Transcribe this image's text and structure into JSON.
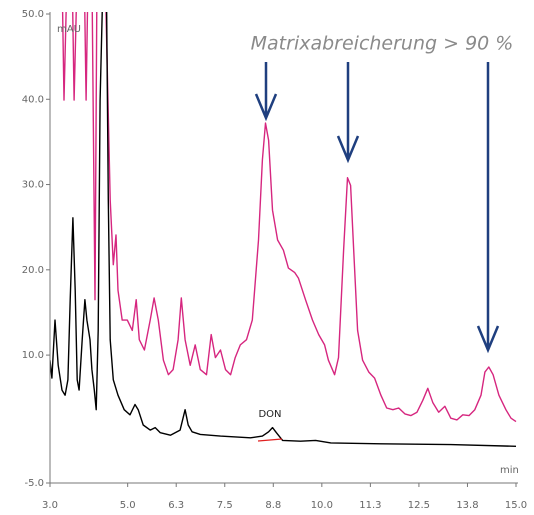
{
  "chart_data": {
    "type": "line",
    "title": "Matrixabreicherung > 90 %",
    "y_label": "mAU",
    "x_label": "min",
    "annotation": "DON",
    "xlim": [
      3,
      15
    ],
    "ylim": [
      -5,
      50
    ],
    "xticks": [
      {
        "value": 3,
        "label": "3.0"
      },
      {
        "value": 5,
        "label": "5.0"
      },
      {
        "value": 6.25,
        "label": "6.3"
      },
      {
        "value": 7.5,
        "label": "7.5"
      },
      {
        "value": 8.75,
        "label": "8.8"
      },
      {
        "value": 10,
        "label": "10.0"
      },
      {
        "value": 11.25,
        "label": "11.3"
      },
      {
        "value": 12.5,
        "label": "12.5"
      },
      {
        "value": 13.75,
        "label": "13.8"
      },
      {
        "value": 15,
        "label": "15.0"
      }
    ],
    "yticks": [
      {
        "value": 50,
        "label": "50.0"
      },
      {
        "value": 40,
        "label": "40.0"
      },
      {
        "value": 30,
        "label": "30.0"
      },
      {
        "value": 20,
        "label": "20.0"
      },
      {
        "value": 10,
        "label": "10.0"
      },
      {
        "value": -5,
        "label": "-5.0"
      }
    ],
    "series": [
      {
        "color": "#d6267f",
        "x": [
          3.31,
          3.36,
          3.44,
          3.57,
          3.62,
          3.7,
          3.88,
          3.93,
          3.98,
          4.08,
          4.16,
          4.21,
          4.42,
          4.55,
          4.63,
          4.7,
          4.75,
          4.86,
          4.99,
          5.12,
          5.22,
          5.3,
          5.43,
          5.58,
          5.68,
          5.79,
          5.92,
          6.05,
          6.17,
          6.3,
          6.38,
          6.48,
          6.61,
          6.74,
          6.87,
          7.03,
          7.15,
          7.26,
          7.39,
          7.52,
          7.65,
          7.77,
          7.9,
          8.06,
          8.21,
          8.37,
          8.47,
          8.55,
          8.63,
          8.73,
          8.86,
          9.01,
          9.14,
          9.3,
          9.4,
          9.58,
          9.76,
          9.92,
          10.07,
          10.17,
          10.33,
          10.43,
          10.56,
          10.66,
          10.74,
          10.82,
          10.92,
          11.05,
          11.21,
          11.36,
          11.52,
          11.67,
          11.83,
          11.98,
          12.14,
          12.29,
          12.45,
          12.6,
          12.73,
          12.86,
          13.01,
          13.17,
          13.32,
          13.48,
          13.63,
          13.79,
          13.94,
          14.1,
          14.2,
          14.3,
          14.41,
          14.56,
          14.74,
          14.87,
          15.0
        ],
        "values": [
          55,
          39.9,
          55,
          55,
          39.9,
          55,
          55,
          39.9,
          55,
          55,
          16.5,
          55,
          55,
          28.2,
          20.6,
          24.1,
          17.6,
          14.1,
          14.1,
          12.9,
          16.5,
          11.8,
          10.6,
          14.1,
          16.7,
          14.1,
          9.4,
          7.7,
          8.3,
          11.8,
          16.7,
          11.8,
          8.8,
          11.2,
          8.3,
          7.7,
          12.4,
          9.7,
          10.6,
          8.3,
          7.7,
          9.7,
          11.2,
          11.8,
          14.1,
          23.5,
          32.9,
          37.2,
          35.2,
          27.0,
          23.5,
          22.3,
          20.2,
          19.7,
          19.0,
          16.5,
          14.1,
          12.4,
          11.2,
          9.4,
          7.7,
          9.7,
          22.3,
          30.8,
          29.9,
          22.3,
          12.9,
          9.4,
          8.0,
          7.3,
          5.3,
          3.8,
          3.6,
          3.8,
          3.1,
          2.9,
          3.3,
          4.7,
          6.1,
          4.4,
          3.3,
          4.0,
          2.6,
          2.4,
          3.0,
          2.9,
          3.6,
          5.3,
          8.0,
          8.6,
          7.7,
          5.3,
          3.6,
          2.6,
          2.2
        ]
      },
      {
        "color": "#000000",
        "x": [
          3.0,
          3.05,
          3.13,
          3.21,
          3.31,
          3.39,
          3.46,
          3.52,
          3.59,
          3.65,
          3.7,
          3.75,
          3.83,
          3.9,
          3.95,
          4.03,
          4.08,
          4.14,
          4.19,
          4.24,
          4.29,
          4.37,
          4.45,
          4.5,
          4.55,
          4.63,
          4.75,
          4.91,
          5.06,
          5.19,
          5.27,
          5.4,
          5.58,
          5.71,
          5.84,
          6.1,
          6.35,
          6.48,
          6.56,
          6.66,
          6.87,
          7.39,
          8.16,
          8.47,
          8.63,
          8.73,
          8.83,
          8.99,
          9.45,
          9.84,
          10.23,
          11.52,
          13.32,
          15.0
        ],
        "values": [
          9.4,
          7.3,
          14.1,
          8.8,
          5.9,
          5.3,
          7.1,
          16.5,
          26.1,
          17.6,
          7.1,
          5.9,
          11.8,
          16.5,
          14.1,
          11.8,
          8.3,
          5.9,
          3.6,
          12.9,
          39.9,
          55,
          55,
          28.2,
          11.8,
          7.1,
          5.3,
          3.6,
          3.0,
          4.2,
          3.6,
          1.8,
          1.2,
          1.5,
          0.9,
          0.6,
          1.2,
          3.6,
          1.8,
          1.0,
          0.7,
          0.5,
          0.3,
          0.5,
          1.0,
          1.5,
          0.9,
          0.0,
          -0.1,
          0.0,
          -0.3,
          -0.4,
          -0.5,
          -0.7
        ]
      }
    ]
  }
}
